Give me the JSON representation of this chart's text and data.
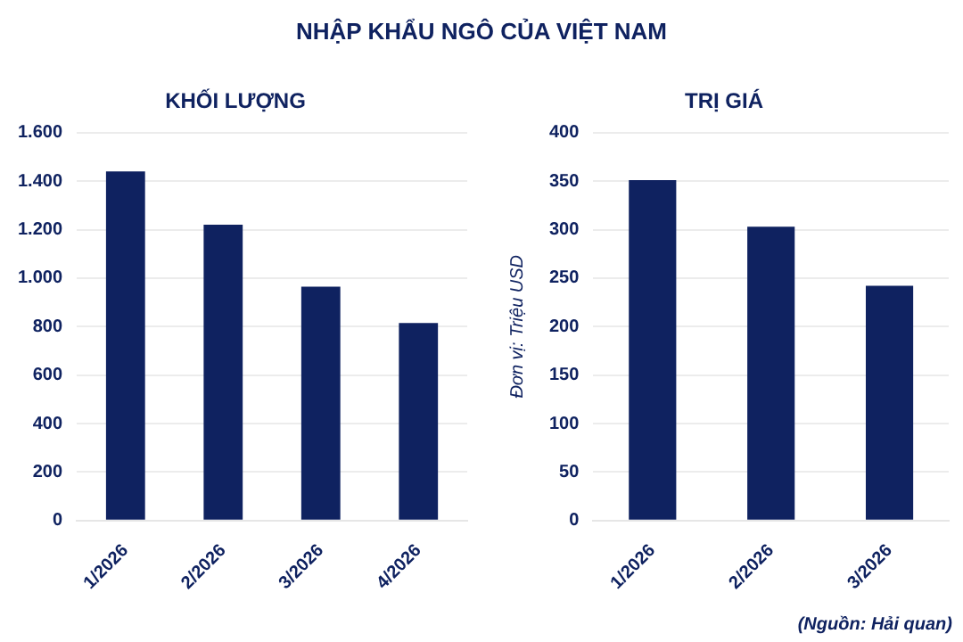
{
  "chart_data": [
    {
      "type": "bar",
      "title": "NHẬP KHẨU NGÔ CỦA VIỆT NAM",
      "subtitle": "KHỐI LƯỢNG",
      "categories": [
        "1/2026",
        "2/2026",
        "3/2026",
        "4/2026"
      ],
      "values": [
        1440,
        1220,
        965,
        815
      ],
      "color": "#0f2260",
      "ylim": [
        0,
        1600
      ],
      "yticks": [
        0,
        200,
        400,
        600,
        800,
        {
          "value": 1000,
          "label": "1.000"
        },
        {
          "value": 1200,
          "label": "1.200"
        },
        {
          "value": 1400,
          "label": "1.400"
        },
        {
          "value": 1600,
          "label": "1.600"
        }
      ],
      "grid": "y",
      "legend": false
    },
    {
      "type": "bar",
      "subtitle": "TRỊ GIÁ",
      "ylabel": "Đơn vị: Triệu USD",
      "categories": [
        "1/2026",
        "2/2026",
        "3/2026"
      ],
      "values": [
        351,
        303,
        242
      ],
      "color": "#0f2260",
      "ylim": [
        0,
        400
      ],
      "yticks": [
        0,
        50,
        100,
        150,
        200,
        250,
        300,
        350,
        400
      ],
      "grid": "y",
      "legend": false,
      "annotations": [
        "(Nguồn: Hải quan)"
      ]
    }
  ]
}
